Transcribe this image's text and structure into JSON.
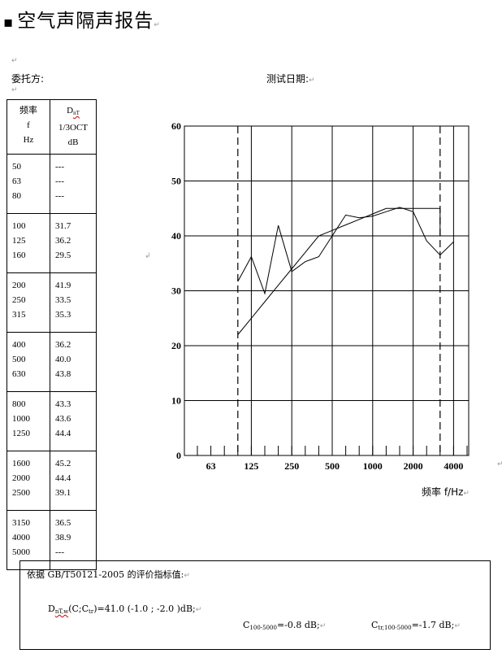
{
  "page": {
    "title": "空气声隔声报告",
    "client_label": "委托方:",
    "test_date_label": "测试日期:"
  },
  "table": {
    "header_col1": [
      "频率",
      "f",
      "Hz"
    ],
    "header_col2_main": "D",
    "header_col2_sub": "nT",
    "header_col2_lines": [
      "1/3OCT",
      "dB"
    ],
    "groups": [
      {
        "freqs": [
          "50",
          "63",
          "80"
        ],
        "values": [
          "---",
          "---",
          "---"
        ]
      },
      {
        "freqs": [
          "100",
          "125",
          "160"
        ],
        "values": [
          "31.7",
          "36.2",
          "29.5"
        ]
      },
      {
        "freqs": [
          "200",
          "250",
          "315"
        ],
        "values": [
          "41.9",
          "33.5",
          "35.3"
        ]
      },
      {
        "freqs": [
          "400",
          "500",
          "630"
        ],
        "values": [
          "36.2",
          "40.0",
          "43.8"
        ]
      },
      {
        "freqs": [
          "800",
          "1000",
          "1250"
        ],
        "values": [
          "43.3",
          "43.6",
          "44.4"
        ]
      },
      {
        "freqs": [
          "1600",
          "2000",
          "2500"
        ],
        "values": [
          "45.2",
          "44.4",
          "39.1"
        ]
      },
      {
        "freqs": [
          "3150",
          "4000",
          "5000"
        ],
        "values": [
          "36.5",
          "38.9",
          "---"
        ]
      }
    ]
  },
  "chart_data": {
    "type": "line",
    "x_tick_labels": [
      "63",
      "125",
      "250",
      "500",
      "1000",
      "2000",
      "4000"
    ],
    "xlabel": "频率 f/Hz",
    "ylim": [
      0,
      60
    ],
    "y_ticks": [
      0,
      10,
      20,
      30,
      40,
      50,
      60
    ],
    "grid": true,
    "x_categories": [
      "50",
      "63",
      "80",
      "100",
      "125",
      "160",
      "200",
      "250",
      "315",
      "400",
      "500",
      "630",
      "800",
      "1000",
      "1250",
      "1600",
      "2000",
      "2500",
      "3150",
      "4000",
      "5000"
    ],
    "series": [
      {
        "x": [
          "100",
          "125",
          "160",
          "200",
          "250",
          "315",
          "400",
          "500",
          "630",
          "800",
          "1000",
          "1250",
          "1600",
          "2000",
          "2500",
          "3150",
          "4000"
        ],
        "values": [
          31.7,
          36.2,
          29.5,
          41.9,
          33.5,
          35.3,
          36.2,
          40.0,
          43.8,
          43.3,
          43.6,
          44.4,
          45.2,
          44.4,
          39.1,
          36.5,
          38.9
        ]
      },
      {
        "x": [
          "100",
          "125",
          "160",
          "200",
          "250",
          "315",
          "400",
          "500",
          "630",
          "800",
          "1000",
          "1250",
          "1600",
          "2000",
          "2500",
          "3150",
          "3150"
        ],
        "values": [
          22,
          25,
          28,
          31,
          34,
          37,
          40,
          41,
          42,
          43,
          44,
          45,
          45,
          45,
          45,
          45,
          40
        ]
      }
    ],
    "dashed_verticals": [
      "100",
      "3150"
    ]
  },
  "evaluation": {
    "heading": "依据 GB/T50121-2005 的评价指标值:",
    "main_main": "D",
    "main_sub": "nT,w",
    "main_rest": "(C;C",
    "main_sub2": "tr",
    "main_value": ")=41.0 (-1.0 ; -2.0 )dB;",
    "c_main": "C",
    "c_sub": "100-5000",
    "c_value": "=-0.8 dB;",
    "ctr_main": "C",
    "ctr_sub": "tr,100-5000",
    "ctr_value": "=-1.7   dB;"
  }
}
